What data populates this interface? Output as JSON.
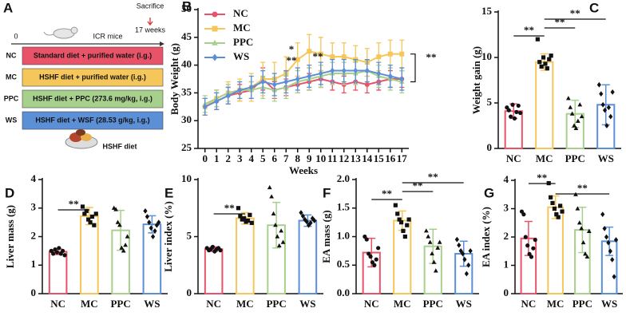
{
  "panel_a": {
    "label": "A",
    "time_start": "0",
    "animal": "ICR mice",
    "sacrifice": "Sacrifice",
    "end": "17 weeks",
    "groups": [
      {
        "code": "NC",
        "label": "Standard diet + purified water (i.g.)",
        "color": "#e8536a"
      },
      {
        "code": "MC",
        "label": "HSHF diet + purified water (i.g.)",
        "color": "#f5c65a"
      },
      {
        "code": "PPC",
        "label": "HSHF diet + PPC (273.6 mg/kg, i.g.)",
        "color": "#a8d08d"
      },
      {
        "code": "WS",
        "label": "HSHF diet + WSF (28.53 g/kg, i.g.)",
        "color": "#5b8fd6"
      }
    ],
    "diet": "HSHF diet"
  },
  "chart_data": [
    {
      "type": "line",
      "panel_label": "B",
      "ylabel": "Body Weight (g)",
      "xlabel": "Weeks",
      "x": [
        0,
        1,
        2,
        3,
        4,
        5,
        6,
        7,
        8,
        9,
        10,
        11,
        12,
        13,
        14,
        15,
        16,
        17
      ],
      "xlim": [
        -0.6,
        17.6
      ],
      "xticks": [
        0,
        1,
        2,
        3,
        4,
        5,
        6,
        7,
        8,
        9,
        10,
        11,
        12,
        13,
        14,
        15,
        16,
        17
      ],
      "ylim": [
        25,
        50
      ],
      "yticks": [
        25,
        30,
        35,
        40,
        45,
        50
      ],
      "series": [
        {
          "name": "NC",
          "color": "#e8536a",
          "values": [
            32.5,
            33.5,
            34.5,
            35,
            35.5,
            37.5,
            35.5,
            36,
            36.5,
            37,
            37.5,
            37,
            36.5,
            37,
            36.5,
            37,
            37.5,
            37.5
          ],
          "errors": [
            1.5,
            1.5,
            1.5,
            1.5,
            1.5,
            2,
            1.5,
            1.5,
            1.5,
            1.5,
            1.5,
            1.5,
            1.5,
            1.5,
            1.5,
            1.5,
            1.5,
            1.5
          ]
        },
        {
          "name": "MC",
          "color": "#f5c65a",
          "values": [
            32.5,
            34,
            35,
            35.5,
            36,
            37.5,
            37.5,
            38.5,
            41,
            42.5,
            42,
            41.5,
            41.5,
            41,
            40.5,
            41.5,
            42,
            42
          ],
          "errors": [
            1.5,
            1.5,
            2,
            2,
            2.5,
            3,
            3,
            3,
            3,
            3,
            3,
            2.5,
            2.5,
            2.5,
            2.5,
            2.5,
            2.5,
            2.5
          ]
        },
        {
          "name": "PPC",
          "color": "#a8d08d",
          "values": [
            33,
            34,
            35,
            35.5,
            35.5,
            36,
            35.5,
            36,
            37,
            37.5,
            38,
            38.5,
            38.5,
            38.5,
            39,
            38,
            37.5,
            37
          ],
          "errors": [
            1.5,
            1.5,
            1.5,
            1.5,
            1.5,
            2,
            2,
            2,
            2,
            2,
            2,
            2,
            2,
            2,
            2,
            2,
            2,
            2
          ]
        },
        {
          "name": "WS",
          "color": "#5b8fd6",
          "values": [
            32.5,
            33.5,
            34.5,
            35.5,
            36,
            37,
            36.5,
            37,
            37.5,
            38,
            38.5,
            39,
            39,
            39,
            39,
            38.5,
            38,
            37.5
          ],
          "errors": [
            1.5,
            1.5,
            1.5,
            1.5,
            2,
            2,
            2,
            2,
            2,
            2,
            2,
            2,
            2,
            2,
            2,
            2,
            2,
            2
          ]
        }
      ],
      "annotations": [
        "*",
        "**",
        "**",
        "**"
      ]
    },
    {
      "type": "bar",
      "panel_label": "C",
      "ylabel": "Weight gain (g)",
      "categories": [
        "NC",
        "MC",
        "PPC",
        "WS"
      ],
      "colors": [
        "#e8536a",
        "#f5c65a",
        "#a8d08d",
        "#5b8fd6"
      ],
      "point_color": "#111",
      "ylim": [
        0,
        15
      ],
      "yticks": [
        0,
        5,
        10,
        15
      ],
      "values": [
        4.1,
        9.5,
        3.8,
        4.8
      ],
      "errors": [
        0.8,
        0.9,
        1.5,
        2.2
      ],
      "points": [
        [
          4.5,
          4.2,
          3.5,
          4.8,
          3.3,
          4.0,
          4.7,
          3.9
        ],
        [
          12.0,
          9.5,
          9.0,
          10.0,
          9.3,
          8.8,
          9.8,
          10.2
        ],
        [
          5.5,
          4.5,
          3.8,
          2.5,
          2.2,
          3.0,
          4.8,
          3.5
        ],
        [
          7.0,
          6.0,
          4.8,
          4.2,
          2.5,
          4.5,
          3.5,
          6.2
        ]
      ],
      "annotations": [
        "**",
        "**",
        "**"
      ]
    },
    {
      "type": "bar",
      "panel_label": "D",
      "ylabel": "Liver mass (g)",
      "categories": [
        "NC",
        "MC",
        "PPC",
        "WS"
      ],
      "colors": [
        "#e8536a",
        "#f5c65a",
        "#a8d08d",
        "#5b8fd6"
      ],
      "point_color": "#111",
      "ylim": [
        0,
        4
      ],
      "yticks": [
        0,
        1,
        2,
        3,
        4
      ],
      "values": [
        1.47,
        2.72,
        2.22,
        2.43
      ],
      "errors": [
        0.1,
        0.3,
        0.7,
        0.3
      ],
      "points": [
        [
          1.5,
          1.4,
          1.55,
          1.45,
          1.6,
          1.4,
          1.5,
          1.35
        ],
        [
          3.05,
          2.8,
          2.9,
          2.6,
          2.5,
          2.7,
          2.4,
          2.8
        ],
        [
          3.0,
          2.95,
          2.5,
          2.4,
          1.6,
          1.5,
          1.7,
          2.0
        ],
        [
          2.9,
          2.7,
          2.5,
          2.3,
          2.0,
          2.2,
          2.4,
          2.5
        ]
      ],
      "annotations": [
        "**"
      ]
    },
    {
      "type": "bar",
      "panel_label": "E",
      "ylabel": "Liver index (%)",
      "categories": [
        "NC",
        "MC",
        "PPC",
        "WS"
      ],
      "colors": [
        "#e8536a",
        "#f5c65a",
        "#a8d08d",
        "#5b8fd6"
      ],
      "point_color": "#111",
      "ylim": [
        0,
        10
      ],
      "yticks": [
        0,
        5,
        10
      ],
      "values": [
        3.9,
        6.6,
        6.0,
        6.4
      ],
      "errors": [
        0.2,
        0.5,
        2.0,
        0.5
      ],
      "points": [
        [
          4.0,
          3.8,
          3.9,
          4.1,
          3.7,
          3.9,
          4.0,
          3.8
        ],
        [
          7.5,
          6.8,
          6.5,
          6.6,
          6.3,
          6.4,
          6.9,
          6.2
        ],
        [
          9.3,
          8.5,
          7.0,
          6.0,
          5.0,
          4.2,
          5.5,
          4.5
        ],
        [
          7.1,
          6.8,
          6.5,
          6.3,
          6.0,
          6.2,
          6.6,
          6.4
        ]
      ],
      "annotations": [
        "**"
      ]
    },
    {
      "type": "bar",
      "panel_label": "F",
      "ylabel": "EA mass (g)",
      "categories": [
        "NC",
        "MC",
        "PPC",
        "WS"
      ],
      "colors": [
        "#e8536a",
        "#f5c65a",
        "#a8d08d",
        "#5b8fd6"
      ],
      "point_color": "#111",
      "ylim": [
        0,
        2
      ],
      "yticks": [
        {
          "value": 0,
          "label": "0.0"
        },
        0.5,
        {
          "value": 1,
          "label": "1.0"
        },
        1.5,
        {
          "value": 2,
          "label": "2.0"
        }
      ],
      "values": [
        0.72,
        1.28,
        0.83,
        0.7
      ],
      "errors": [
        0.25,
        0.17,
        0.3,
        0.22
      ],
      "points": [
        [
          1.0,
          0.95,
          0.7,
          0.65,
          0.55,
          0.5,
          0.6,
          0.8
        ],
        [
          1.55,
          1.4,
          1.3,
          1.25,
          1.1,
          1.0,
          1.2,
          1.3
        ],
        [
          1.1,
          1.0,
          0.9,
          0.7,
          0.55,
          0.4,
          0.8,
          0.9
        ],
        [
          0.95,
          0.85,
          0.75,
          0.7,
          0.6,
          0.35,
          0.5,
          0.75
        ]
      ],
      "annotations": [
        "**",
        "**",
        "**"
      ]
    },
    {
      "type": "bar",
      "panel_label": "G",
      "ylabel": "EA index (%)",
      "categories": [
        "NC",
        "MC",
        "PPC",
        "WS"
      ],
      "colors": [
        "#e8536a",
        "#f5c65a",
        "#a8d08d",
        "#5b8fd6"
      ],
      "point_color": "#111",
      "ylim": [
        0,
        4
      ],
      "yticks": [
        0,
        1,
        2,
        3,
        4
      ],
      "values": [
        1.95,
        3.05,
        2.25,
        1.85
      ],
      "errors": [
        0.6,
        0.4,
        0.8,
        0.5
      ],
      "points": [
        [
          2.9,
          2.8,
          2.0,
          1.7,
          1.4,
          1.3,
          1.6,
          1.9
        ],
        [
          3.9,
          3.4,
          3.2,
          3.0,
          2.8,
          2.7,
          3.1,
          2.9
        ],
        [
          3.5,
          3.0,
          2.5,
          2.3,
          1.8,
          1.4,
          1.3,
          2.2
        ],
        [
          2.8,
          2.3,
          2.0,
          1.8,
          1.5,
          1.2,
          0.6,
          1.9
        ]
      ],
      "annotations": [
        "**",
        "**"
      ]
    }
  ]
}
